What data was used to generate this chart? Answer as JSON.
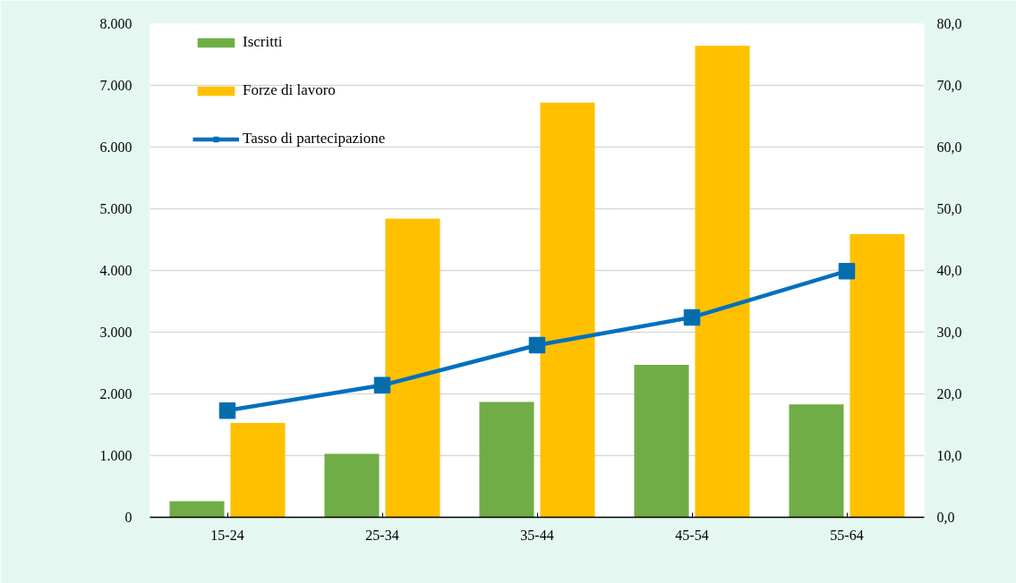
{
  "chart_data": {
    "type": "bar",
    "categories": [
      "15-24",
      "25-34",
      "35-44",
      "45-54",
      "55-64"
    ],
    "series": [
      {
        "name": "Iscritti",
        "color": "#70ad47",
        "values": [
          260,
          1030,
          1870,
          2470,
          1830
        ]
      },
      {
        "name": "Forze di lavoro",
        "color": "#ffc000",
        "values": [
          1530,
          4840,
          6720,
          7640,
          4590
        ]
      },
      {
        "name": "Tasso di partecipazione",
        "type": "line",
        "axis": "y2",
        "color": "#0070c0",
        "values": [
          17.3,
          21.4,
          27.9,
          32.4,
          39.9
        ]
      }
    ],
    "ylim": [
      0,
      8000
    ],
    "yticks": [
      0,
      {
        "value": 1000,
        "label": "1.000"
      },
      {
        "value": 2000,
        "label": "2.000"
      },
      {
        "value": 3000,
        "label": "3.000"
      },
      {
        "value": 4000,
        "label": "4.000"
      },
      {
        "value": 5000,
        "label": "5.000"
      },
      {
        "value": 6000,
        "label": "6.000"
      },
      {
        "value": 7000,
        "label": "7.000"
      },
      {
        "value": 8000,
        "label": "8.000"
      }
    ],
    "y2lim": [
      0,
      80
    ],
    "y2ticks": [
      {
        "value": 0,
        "label": "0,0"
      },
      {
        "value": 10,
        "label": "10,0"
      },
      {
        "value": 20,
        "label": "20,0"
      },
      {
        "value": 30,
        "label": "30,0"
      },
      {
        "value": 40,
        "label": "40,0"
      },
      {
        "value": 50,
        "label": "50,0"
      },
      {
        "value": 60,
        "label": "60,0"
      },
      {
        "value": 70,
        "label": "70,0"
      },
      {
        "value": 80,
        "label": "80,0"
      }
    ],
    "grid": "y",
    "legend": "top left",
    "marker": "square"
  }
}
